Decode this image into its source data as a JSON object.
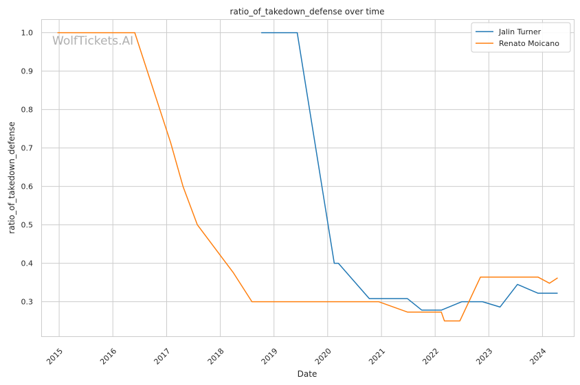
{
  "chart_data": {
    "type": "line",
    "title": "ratio_of_takedown_defense over time",
    "xlabel": "Date",
    "ylabel": "ratio_of_takedown_defense",
    "watermark": "WolfTickets.AI",
    "grid": true,
    "legend_position": "top-right",
    "x_ticks": [
      "2015",
      "2016",
      "2017",
      "2018",
      "2019",
      "2020",
      "2021",
      "2022",
      "2023",
      "2024"
    ],
    "y_ticks": [
      "0.3",
      "0.4",
      "0.5",
      "0.6",
      "0.7",
      "0.8",
      "0.9",
      "1.0"
    ],
    "xlim": [
      "2014-09-01",
      "2024-08-01"
    ],
    "ylim": [
      0.21,
      1.035
    ],
    "series": [
      {
        "name": "Jalin Turner",
        "color": "#1f77b4",
        "points": [
          [
            "2018-10-06",
            1.0
          ],
          [
            "2019-06-08",
            1.0
          ],
          [
            "2020-02-15",
            0.4
          ],
          [
            "2020-03-14",
            0.4
          ],
          [
            "2020-10-10",
            0.308
          ],
          [
            "2021-06-26",
            0.308
          ],
          [
            "2021-10-02",
            0.278
          ],
          [
            "2022-02-12",
            0.278
          ],
          [
            "2022-07-02",
            0.3
          ],
          [
            "2022-11-19",
            0.3
          ],
          [
            "2023-03-18",
            0.286
          ],
          [
            "2023-07-15",
            0.345
          ],
          [
            "2023-12-02",
            0.322
          ],
          [
            "2024-04-13",
            0.322
          ]
        ]
      },
      {
        "name": "Renato Moicano",
        "color": "#ff7f0e",
        "points": [
          [
            "2014-12-20",
            1.0
          ],
          [
            "2016-05-29",
            1.0
          ],
          [
            "2017-01-28",
            0.714
          ],
          [
            "2017-04-22",
            0.6
          ],
          [
            "2017-07-29",
            0.5
          ],
          [
            "2018-03-31",
            0.375
          ],
          [
            "2018-08-04",
            0.3
          ],
          [
            "2020-12-12",
            0.3
          ],
          [
            "2021-06-26",
            0.273
          ],
          [
            "2022-02-12",
            0.273
          ],
          [
            "2022-03-05",
            0.25
          ],
          [
            "2022-06-18",
            0.25
          ],
          [
            "2022-11-05",
            0.364
          ],
          [
            "2023-12-02",
            0.364
          ],
          [
            "2024-02-17",
            0.348
          ],
          [
            "2024-04-13",
            0.362
          ]
        ]
      }
    ]
  }
}
